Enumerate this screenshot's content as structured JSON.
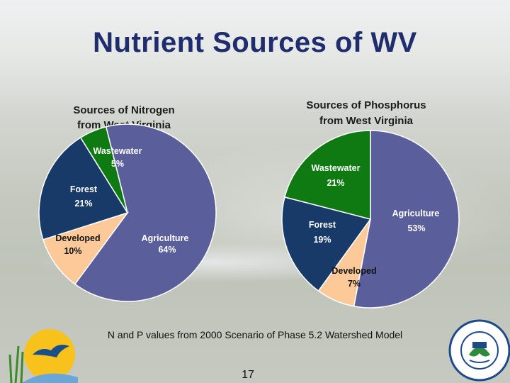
{
  "slide": {
    "title": "Nutrient Sources of WV",
    "footnote": "N and P values from 2000 Scenario of Phase 5.2 Watershed Model",
    "page_number": "17"
  },
  "chart_data": [
    {
      "type": "pie",
      "title": [
        "Sources of Nitrogen",
        "from West Virginia"
      ],
      "slices": [
        {
          "label": "Agriculture",
          "value": 64,
          "value_label": "64%",
          "color": "#5a5f9b",
          "text_color": "#ffffff"
        },
        {
          "label": "Developed",
          "value": 10,
          "value_label": "10%",
          "color": "#fdc998",
          "text_color": "#111111"
        },
        {
          "label": "Forest",
          "value": 21,
          "value_label": "21%",
          "color": "#173a69",
          "text_color": "#ffffff"
        },
        {
          "label": "Wastewater",
          "value": 5,
          "value_label": "5%",
          "color": "#0f7a12",
          "text_color": "#ffffff"
        }
      ]
    },
    {
      "type": "pie",
      "title": [
        "Sources of Phosphorus",
        "from West Virginia"
      ],
      "slices": [
        {
          "label": "Agriculture",
          "value": 53,
          "value_label": "53%",
          "color": "#5a5f9b",
          "text_color": "#ffffff"
        },
        {
          "label": "Developed",
          "value": 7,
          "value_label": "7%",
          "color": "#fdc998",
          "text_color": "#111111"
        },
        {
          "label": "Forest",
          "value": 19,
          "value_label": "19%",
          "color": "#173a69",
          "text_color": "#ffffff"
        },
        {
          "label": "Wastewater",
          "value": 21,
          "value_label": "21%",
          "color": "#0f7a12",
          "text_color": "#ffffff"
        }
      ]
    }
  ]
}
